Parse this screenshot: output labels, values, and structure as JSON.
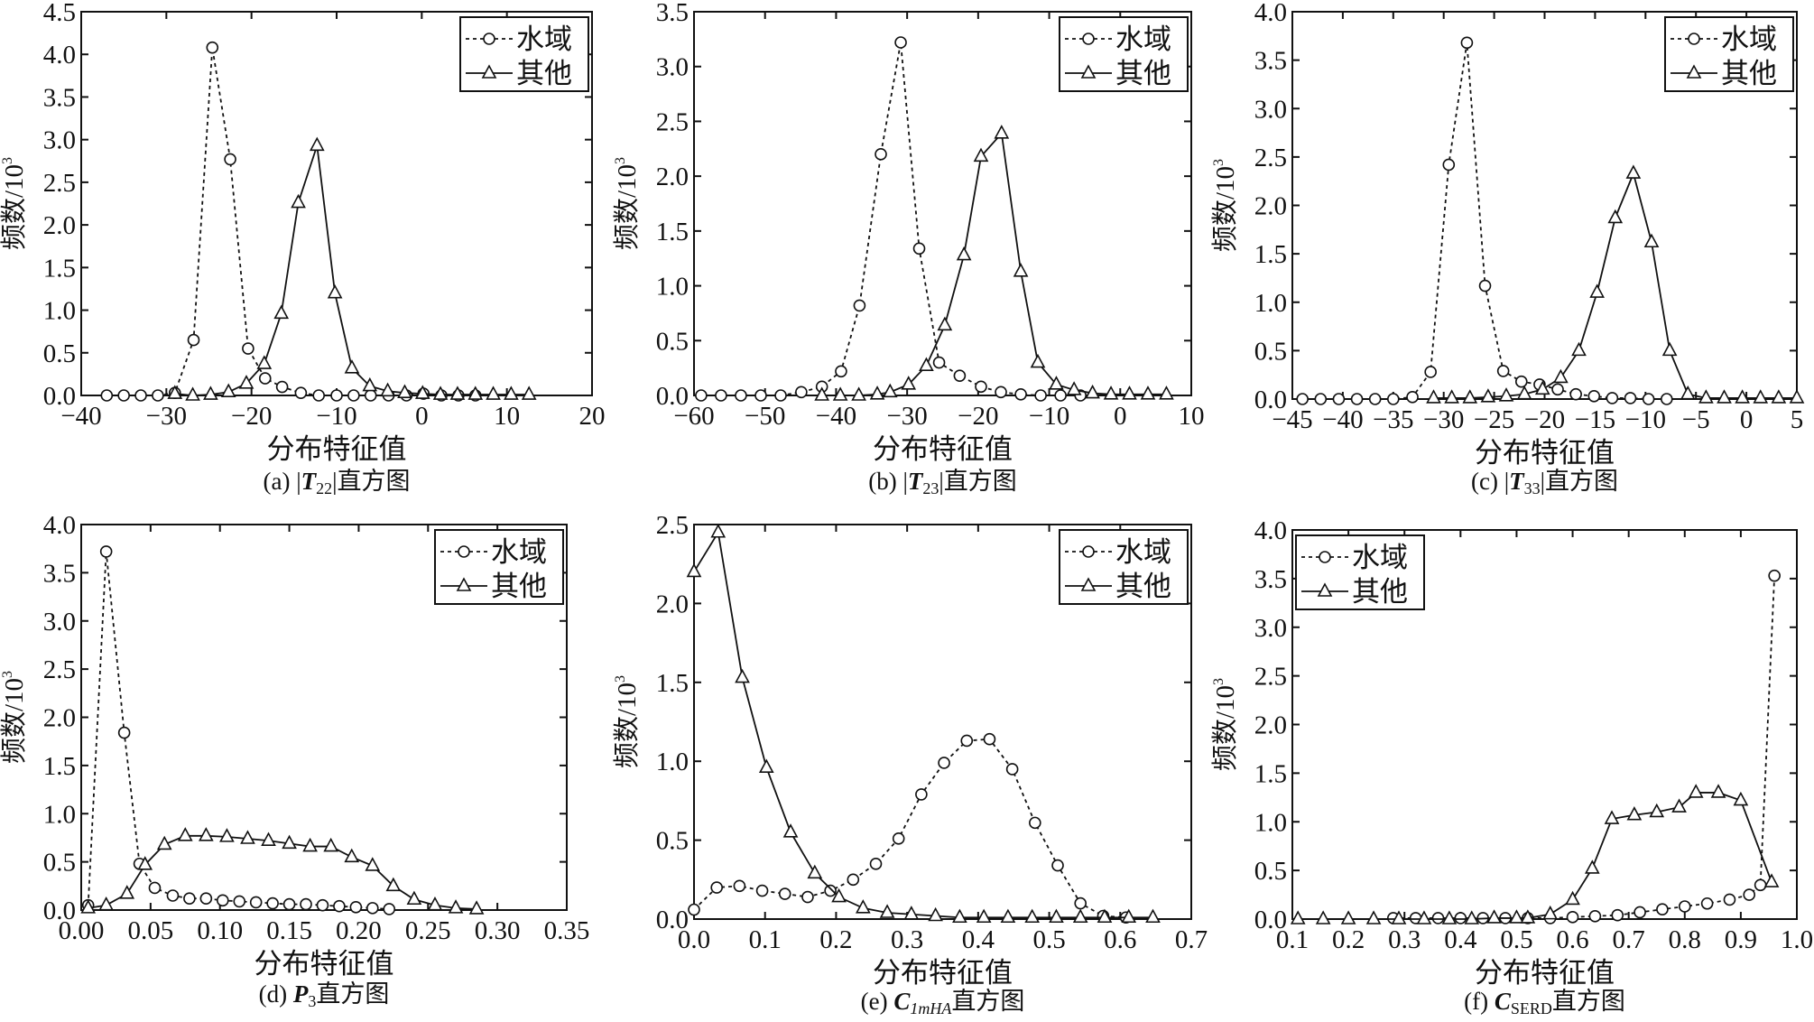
{
  "legend_labels": {
    "water": "水域",
    "other": "其他"
  },
  "xlabel": "分布特征值",
  "ylabel": "频数/10",
  "ylabel_exp": "3",
  "chart_data": [
    {
      "type": "line",
      "id": "a",
      "caption": {
        "prefix": "(a) |",
        "symbol": "T",
        "sub": "22",
        "suffix": "|直方图"
      },
      "xlim": [
        -40,
        20
      ],
      "ylim": [
        0,
        4.5
      ],
      "xticks": [
        -40,
        -30,
        -20,
        -10,
        0,
        10,
        20
      ],
      "xtick_labels": [
        "−40",
        "−30",
        "−20",
        "−10",
        "0",
        "10",
        "20"
      ],
      "yticks": [
        0,
        0.5,
        1,
        1.5,
        2,
        2.5,
        3,
        3.5,
        4,
        4.5
      ],
      "ytick_labels": [
        "0.0",
        "0.5",
        "1.0",
        "1.5",
        "2.0",
        "2.5",
        "3.0",
        "3.5",
        "4.0",
        "4.5"
      ],
      "legend": "top-right",
      "series": [
        {
          "name": "水域",
          "marker": "circle",
          "style": "dotted",
          "x": [
            -37,
            -35,
            -33,
            -31,
            -29,
            -26.8,
            -24.6,
            -22.5,
            -20.4,
            -18.4,
            -16.4,
            -14.2,
            -12.1,
            -10,
            -8,
            -6,
            -3.9,
            -1.8,
            0.2,
            2.3,
            4.3,
            6.3
          ],
          "y": [
            0,
            0,
            0,
            0,
            0.03,
            0.65,
            4.08,
            2.77,
            0.55,
            0.2,
            0.1,
            0.03,
            0,
            0,
            0,
            0,
            0,
            0,
            0.02,
            0,
            0,
            0
          ]
        },
        {
          "name": "其他",
          "marker": "triangle",
          "style": "solid",
          "x": [
            -29,
            -26.9,
            -24.8,
            -22.7,
            -20.6,
            -18.5,
            -16.5,
            -14.5,
            -12.3,
            -10.2,
            -8.2,
            -6.1,
            -4,
            -2,
            0.1,
            2.2,
            4.2,
            6.3,
            8.4,
            10.5,
            12.6
          ],
          "y": [
            0.02,
            0,
            0.01,
            0.04,
            0.14,
            0.37,
            0.96,
            2.26,
            2.93,
            1.2,
            0.32,
            0.11,
            0.05,
            0.03,
            0.02,
            0.01,
            0.01,
            0.01,
            0.01,
            0.01,
            0.01
          ]
        }
      ]
    },
    {
      "type": "line",
      "id": "b",
      "caption": {
        "prefix": "(b) |",
        "symbol": "T",
        "sub": "23",
        "suffix": "|直方图"
      },
      "xlim": [
        -60,
        10
      ],
      "ylim": [
        0,
        3.5
      ],
      "xticks": [
        -60,
        -50,
        -40,
        -30,
        -20,
        -10,
        0,
        10
      ],
      "xtick_labels": [
        "−60",
        "−50",
        "−40",
        "−30",
        "−20",
        "−10",
        "0",
        "10"
      ],
      "yticks": [
        0,
        0.5,
        1,
        1.5,
        2,
        2.5,
        3,
        3.5
      ],
      "ytick_labels": [
        "0.0",
        "0.5",
        "1.0",
        "1.5",
        "2.0",
        "2.5",
        "3.0",
        "3.5"
      ],
      "legend": "top-right",
      "series": [
        {
          "name": "水域",
          "marker": "circle",
          "style": "dotted",
          "x": [
            -59,
            -56.2,
            -53.4,
            -50.6,
            -47.8,
            -44.9,
            -42,
            -39.3,
            -36.7,
            -33.7,
            -30.9,
            -28.3,
            -25.5,
            -22.6,
            -19.6,
            -16.8,
            -14,
            -11.2,
            -8.4,
            -5.6
          ],
          "y": [
            0,
            0,
            0,
            0,
            0,
            0.03,
            0.08,
            0.22,
            0.82,
            2.2,
            3.22,
            1.34,
            0.3,
            0.18,
            0.08,
            0.03,
            0.01,
            0,
            0,
            0
          ]
        },
        {
          "name": "其他",
          "marker": "triangle",
          "style": "solid",
          "x": [
            -42,
            -39.4,
            -36.8,
            -34.2,
            -32.4,
            -29.8,
            -27.3,
            -24.7,
            -22,
            -19.6,
            -16.7,
            -14,
            -11.6,
            -9,
            -6.5,
            -3.9,
            -1.3,
            1.3,
            3.9,
            6.5
          ],
          "y": [
            0,
            0,
            0,
            0.01,
            0.03,
            0.1,
            0.27,
            0.64,
            1.28,
            2.18,
            2.39,
            1.13,
            0.3,
            0.1,
            0.05,
            0.02,
            0.01,
            0.01,
            0.01,
            0.01
          ]
        }
      ]
    },
    {
      "type": "line",
      "id": "c",
      "caption": {
        "prefix": "(c) |",
        "symbol": "T",
        "sub": "33",
        "suffix": "|直方图"
      },
      "xlim": [
        -45,
        5
      ],
      "ylim": [
        0,
        4
      ],
      "xticks": [
        -45,
        -40,
        -35,
        -30,
        -25,
        -20,
        -15,
        -10,
        -5,
        0,
        5
      ],
      "xtick_labels": [
        "−45",
        "−40",
        "−35",
        "−30",
        "−25",
        "−20",
        "−15",
        "−10",
        "−5",
        "0",
        "5"
      ],
      "yticks": [
        0,
        0.5,
        1,
        1.5,
        2,
        2.5,
        3,
        3.5,
        4
      ],
      "ytick_labels": [
        "0.0",
        "0.5",
        "1.0",
        "1.5",
        "2.0",
        "2.5",
        "3.0",
        "3.5",
        "4.0"
      ],
      "legend": "top-right",
      "series": [
        {
          "name": "水域",
          "marker": "circle",
          "style": "dotted",
          "x": [
            -44,
            -42.2,
            -40.4,
            -38.6,
            -36.8,
            -35,
            -33.1,
            -31.3,
            -29.5,
            -27.7,
            -25.9,
            -24.1,
            -22.3,
            -20.5,
            -18.7,
            -16.9,
            -15.1,
            -13.3,
            -11.5,
            -9.7,
            -7.9
          ],
          "y": [
            0,
            0,
            0,
            0,
            0,
            0,
            0.02,
            0.28,
            2.42,
            3.68,
            1.17,
            0.29,
            0.18,
            0.15,
            0.1,
            0.05,
            0.03,
            0.01,
            0.01,
            0,
            0
          ]
        },
        {
          "name": "其他",
          "marker": "triangle",
          "style": "solid",
          "x": [
            -31,
            -29.2,
            -27.4,
            -25.6,
            -23.8,
            -22,
            -20.2,
            -18.4,
            -16.6,
            -14.8,
            -13,
            -11.2,
            -9.4,
            -7.6,
            -5.8,
            -4,
            -2.2,
            -0.4,
            1.4,
            3.2,
            5
          ],
          "y": [
            0.01,
            0.01,
            0.01,
            0.02,
            0.03,
            0.05,
            0.1,
            0.22,
            0.5,
            1.1,
            1.87,
            2.33,
            1.62,
            0.5,
            0.05,
            0.01,
            0.01,
            0.01,
            0.01,
            0.01,
            0.01
          ]
        }
      ]
    },
    {
      "type": "line",
      "id": "d",
      "caption": {
        "prefix": "(d) ",
        "symbol": "P",
        "sub": "3",
        "suffix": "直方图"
      },
      "xlim": [
        0,
        0.35
      ],
      "ylim": [
        0,
        4
      ],
      "xticks": [
        0,
        0.05,
        0.1,
        0.15,
        0.2,
        0.25,
        0.3,
        0.35
      ],
      "xtick_labels": [
        "0.00",
        "0.05",
        "0.10",
        "0.15",
        "0.20",
        "0.25",
        "0.30",
        "0.35"
      ],
      "yticks": [
        0,
        0.5,
        1,
        1.5,
        2,
        2.5,
        3,
        3.5,
        4
      ],
      "ytick_labels": [
        "0.0",
        "0.5",
        "1.0",
        "1.5",
        "2.0",
        "2.5",
        "3.0",
        "3.5",
        "4.0"
      ],
      "legend": "top-right",
      "series": [
        {
          "name": "水域",
          "marker": "circle",
          "style": "dotted",
          "x": [
            0.005,
            0.018,
            0.031,
            0.042,
            0.053,
            0.066,
            0.078,
            0.09,
            0.102,
            0.114,
            0.126,
            0.138,
            0.15,
            0.162,
            0.174,
            0.186,
            0.198,
            0.21,
            0.222
          ],
          "y": [
            0.05,
            3.72,
            1.84,
            0.48,
            0.23,
            0.15,
            0.12,
            0.12,
            0.1,
            0.09,
            0.08,
            0.07,
            0.06,
            0.06,
            0.05,
            0.04,
            0.03,
            0.02,
            0.01
          ]
        },
        {
          "name": "其他",
          "marker": "triangle",
          "style": "solid",
          "x": [
            0.005,
            0.018,
            0.033,
            0.046,
            0.06,
            0.075,
            0.09,
            0.105,
            0.12,
            0.135,
            0.15,
            0.165,
            0.18,
            0.195,
            0.21,
            0.225,
            0.24,
            0.255,
            0.27,
            0.285
          ],
          "y": [
            0.02,
            0.05,
            0.17,
            0.47,
            0.68,
            0.77,
            0.77,
            0.76,
            0.74,
            0.72,
            0.69,
            0.66,
            0.66,
            0.55,
            0.46,
            0.25,
            0.11,
            0.05,
            0.02,
            0.01
          ]
        }
      ]
    },
    {
      "type": "line",
      "id": "e",
      "caption": {
        "prefix": "(e) ",
        "symbol": "C",
        "sub": "1mHA",
        "suffix": "直方图"
      },
      "xlim": [
        0,
        0.7
      ],
      "ylim": [
        0,
        2.5
      ],
      "xticks": [
        0,
        0.1,
        0.2,
        0.3,
        0.4,
        0.5,
        0.6,
        0.7
      ],
      "xtick_labels": [
        "0.0",
        "0.1",
        "0.2",
        "0.3",
        "0.4",
        "0.5",
        "0.6",
        "0.7"
      ],
      "yticks": [
        0,
        0.5,
        1,
        1.5,
        2,
        2.5
      ],
      "ytick_labels": [
        "0.0",
        "0.5",
        "1.0",
        "1.5",
        "2.0",
        "2.5"
      ],
      "legend": "top-right",
      "series": [
        {
          "name": "水域",
          "marker": "circle",
          "style": "dotted",
          "x": [
            0,
            0.032,
            0.064,
            0.096,
            0.128,
            0.16,
            0.192,
            0.224,
            0.256,
            0.288,
            0.32,
            0.352,
            0.384,
            0.416,
            0.448,
            0.48,
            0.512,
            0.544,
            0.576,
            0.608
          ],
          "y": [
            0.06,
            0.2,
            0.21,
            0.18,
            0.16,
            0.14,
            0.18,
            0.25,
            0.35,
            0.51,
            0.79,
            0.99,
            1.13,
            1.14,
            0.95,
            0.61,
            0.34,
            0.1,
            0.02,
            0.01
          ]
        },
        {
          "name": "其他",
          "marker": "triangle",
          "style": "solid",
          "x": [
            0,
            0.034,
            0.068,
            0.102,
            0.136,
            0.17,
            0.204,
            0.238,
            0.272,
            0.306,
            0.34,
            0.374,
            0.408,
            0.442,
            0.476,
            0.51,
            0.544,
            0.578,
            0.612,
            0.646
          ],
          "y": [
            2.2,
            2.45,
            1.53,
            0.96,
            0.55,
            0.29,
            0.14,
            0.07,
            0.04,
            0.03,
            0.02,
            0.01,
            0.01,
            0.01,
            0.01,
            0.01,
            0.01,
            0.01,
            0.01,
            0.01
          ]
        }
      ]
    },
    {
      "type": "line",
      "id": "f",
      "caption": {
        "prefix": "(f) ",
        "symbol": "C",
        "sub": "SERD",
        "suffix": "直方图"
      },
      "xlim": [
        0.1,
        1.0
      ],
      "ylim": [
        0,
        4
      ],
      "xticks": [
        0.1,
        0.2,
        0.3,
        0.4,
        0.5,
        0.6,
        0.7,
        0.8,
        0.9,
        1.0
      ],
      "xtick_labels": [
        "0.1",
        "0.2",
        "0.3",
        "0.4",
        "0.5",
        "0.6",
        "0.7",
        "0.8",
        "0.9",
        "1.0"
      ],
      "yticks": [
        0,
        0.5,
        1,
        1.5,
        2,
        2.5,
        3,
        3.5,
        4
      ],
      "ytick_labels": [
        "0.0",
        "0.5",
        "1.0",
        "1.5",
        "2.0",
        "2.5",
        "3.0",
        "3.5",
        "4.0"
      ],
      "legend": "top-left",
      "series": [
        {
          "name": "水域",
          "marker": "circle",
          "style": "dotted",
          "x": [
            0.28,
            0.32,
            0.36,
            0.4,
            0.44,
            0.48,
            0.52,
            0.56,
            0.6,
            0.64,
            0.68,
            0.72,
            0.76,
            0.8,
            0.84,
            0.88,
            0.915,
            0.935,
            0.96
          ],
          "y": [
            0.01,
            0.01,
            0.01,
            0.01,
            0.01,
            0.01,
            0.01,
            0.01,
            0.02,
            0.03,
            0.04,
            0.07,
            0.1,
            0.13,
            0.16,
            0.2,
            0.25,
            0.35,
            3.53
          ]
        },
        {
          "name": "其他",
          "marker": "triangle",
          "style": "solid",
          "x": [
            0.11,
            0.155,
            0.2,
            0.245,
            0.29,
            0.335,
            0.38,
            0.42,
            0.46,
            0.5,
            0.52,
            0.56,
            0.6,
            0.635,
            0.67,
            0.71,
            0.75,
            0.79,
            0.82,
            0.86,
            0.9,
            0.955
          ],
          "y": [
            0,
            0,
            0,
            0,
            0,
            0,
            0,
            0,
            0.01,
            0.01,
            0.01,
            0.05,
            0.2,
            0.52,
            1.03,
            1.07,
            1.1,
            1.15,
            1.3,
            1.3,
            1.22,
            0.38
          ]
        }
      ]
    }
  ]
}
